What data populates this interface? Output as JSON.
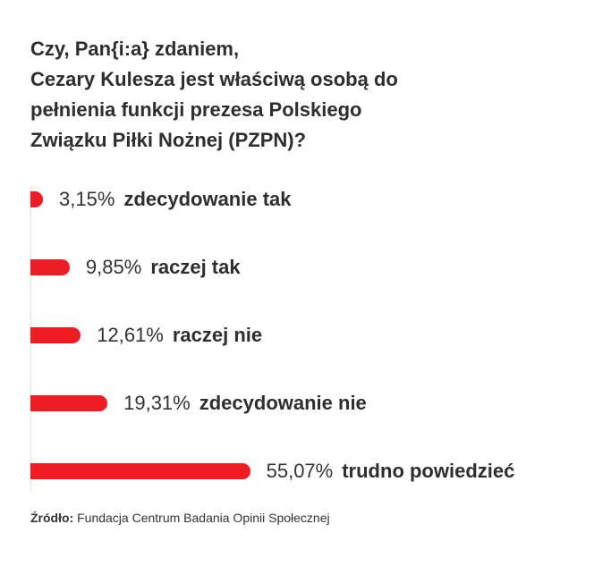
{
  "chart_data": {
    "type": "bar",
    "orientation": "horizontal",
    "title_lines": [
      "Czy, Pan{i:a} zdaniem,",
      "Cezary Kulesza jest właściwą osobą do",
      "pełnienia funkcji prezesa Polskiego",
      "Związku Piłki Nożnej (PZPN)?"
    ],
    "categories": [
      "zdecydowanie tak",
      "raczej tak",
      "raczej nie",
      "zdecydowanie nie",
      "trudno powiedzieć"
    ],
    "values": [
      3.15,
      9.85,
      12.61,
      19.31,
      55.07
    ],
    "value_labels": [
      "3,15%",
      "9,85%",
      "12,61%",
      "19,31%",
      "55,07%"
    ],
    "unit": "%",
    "bar_color": "#ee1c25",
    "grid": false,
    "legend": "none"
  },
  "source": {
    "label": "Źródło:",
    "text": "Fundacja Centrum Badania Opinii Społecznej"
  }
}
